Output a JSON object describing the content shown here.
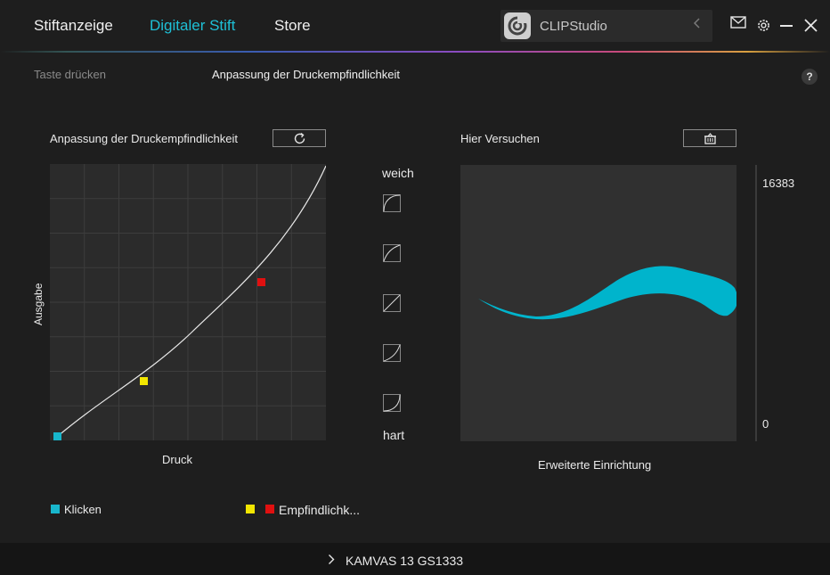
{
  "nav": {
    "tabs": [
      {
        "label": "Stiftanzeige"
      },
      {
        "label": "Digitaler Stift"
      },
      {
        "label": "Store"
      }
    ],
    "app_selector": {
      "value": "CLIPStudio"
    }
  },
  "subtabs": {
    "taste": "Taste drücken",
    "anpassung": "Anpassung der Druckempfindlichkeit"
  },
  "help_label": "?",
  "left_panel": {
    "title": "Anpassung der Druckempfindlichkeit",
    "ylabel": "Ausgabe",
    "xlabel": "Druck"
  },
  "curve_presets": {
    "top_label": "weich",
    "bottom_label": "hart"
  },
  "right_panel": {
    "title": "Hier Versuchen",
    "scale_max": "16383",
    "scale_min": "0",
    "advanced_label": "Erweiterte Einrichtung"
  },
  "legend": {
    "click_label": "Klicken",
    "sens_label": "Empfindlichk..."
  },
  "footer": {
    "device": "KAMVAS 13 GS1333"
  },
  "colors": {
    "accent": "#1ec0d6",
    "click_marker": "#18b6cc",
    "yellow_marker": "#f2e600",
    "red_marker": "#e01010",
    "stroke": "#00b4cc"
  }
}
